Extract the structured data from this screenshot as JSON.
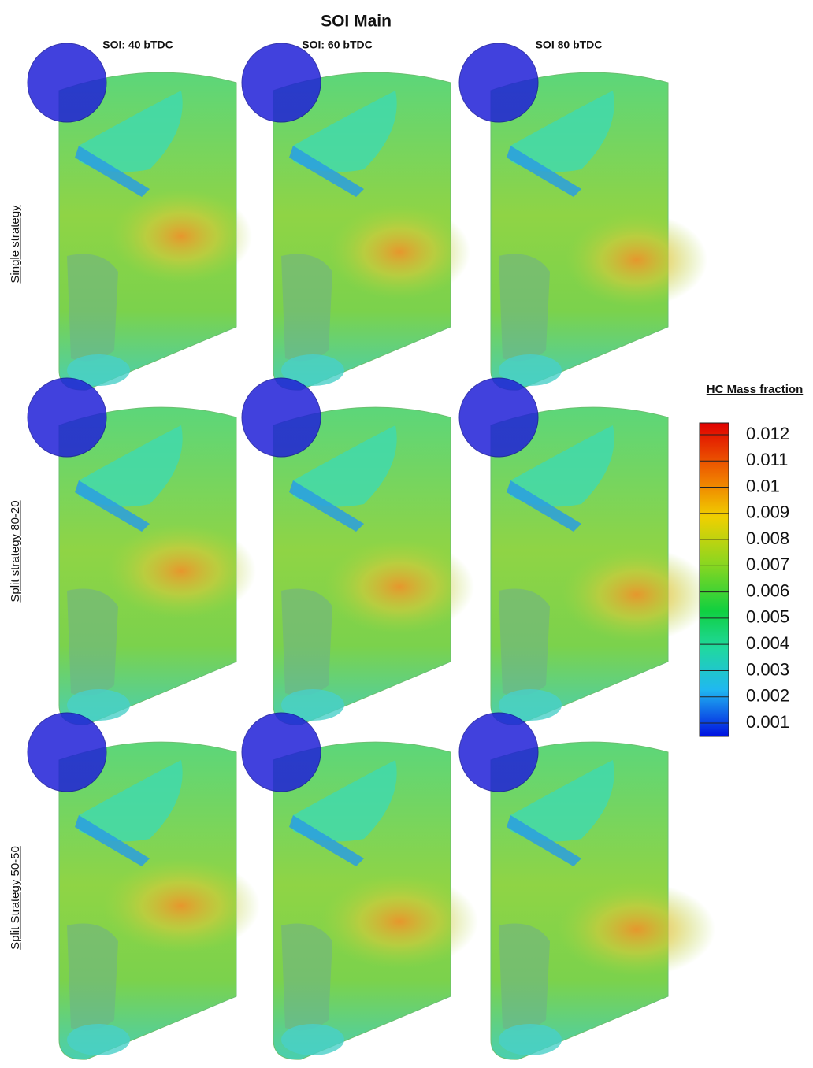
{
  "header": {
    "title": "SOI Main"
  },
  "columns": [
    "SOI: 40 bTDC",
    "SOI: 60 bTDC",
    "SOI 80 bTDC"
  ],
  "rows": [
    "Single strategy",
    "Split strategy 80-20",
    "Split Strategy 50-50"
  ],
  "colorbar": {
    "title": "HC Mass fraction",
    "ticks": [
      0.012,
      0.011,
      0.01,
      0.009,
      0.008,
      0.007,
      0.006,
      0.005,
      0.004,
      0.003,
      0.002,
      0.001
    ]
  }
}
